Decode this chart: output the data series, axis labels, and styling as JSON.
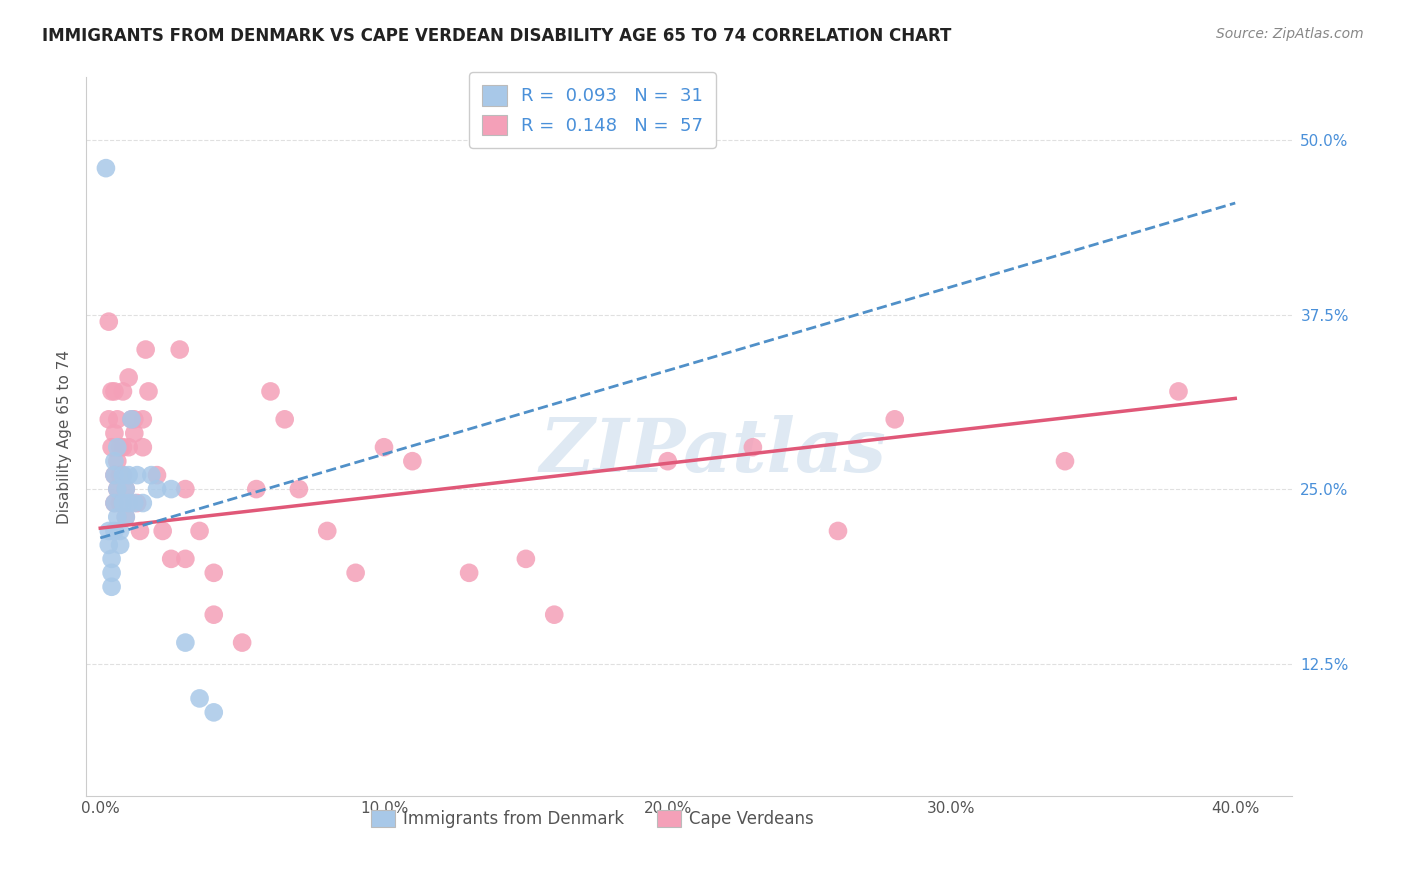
{
  "title": "IMMIGRANTS FROM DENMARK VS CAPE VERDEAN DISABILITY AGE 65 TO 74 CORRELATION CHART",
  "source": "Source: ZipAtlas.com",
  "xlabel_ticks": [
    "0.0%",
    "10.0%",
    "20.0%",
    "30.0%",
    "40.0%"
  ],
  "xlabel_tick_vals": [
    0.0,
    0.1,
    0.2,
    0.3,
    0.4
  ],
  "ylabel": "Disability Age 65 to 74",
  "ylabel_ticks": [
    "12.5%",
    "25.0%",
    "37.5%",
    "50.0%"
  ],
  "ylabel_tick_vals": [
    0.125,
    0.25,
    0.375,
    0.5
  ],
  "xlim": [
    -0.005,
    0.42
  ],
  "ylim": [
    0.03,
    0.545
  ],
  "denmark_R": 0.093,
  "denmark_N": 31,
  "capeverde_R": 0.148,
  "capeverde_N": 57,
  "denmark_color": "#a8c8e8",
  "capeverde_color": "#f4a0b8",
  "denmark_line_color": "#5090c8",
  "capeverde_line_color": "#e05878",
  "denmark_x": [
    0.002,
    0.003,
    0.003,
    0.004,
    0.004,
    0.004,
    0.005,
    0.005,
    0.005,
    0.005,
    0.006,
    0.006,
    0.006,
    0.007,
    0.007,
    0.008,
    0.008,
    0.009,
    0.009,
    0.01,
    0.01,
    0.011,
    0.012,
    0.013,
    0.015,
    0.018,
    0.02,
    0.025,
    0.03,
    0.035,
    0.04
  ],
  "denmark_y": [
    0.48,
    0.22,
    0.21,
    0.2,
    0.19,
    0.18,
    0.27,
    0.26,
    0.24,
    0.22,
    0.28,
    0.25,
    0.23,
    0.22,
    0.21,
    0.26,
    0.24,
    0.25,
    0.23,
    0.26,
    0.24,
    0.3,
    0.24,
    0.26,
    0.24,
    0.26,
    0.25,
    0.25,
    0.14,
    0.1,
    0.09
  ],
  "capeverde_x": [
    0.003,
    0.003,
    0.004,
    0.004,
    0.005,
    0.005,
    0.005,
    0.005,
    0.006,
    0.006,
    0.006,
    0.007,
    0.007,
    0.007,
    0.008,
    0.008,
    0.008,
    0.009,
    0.009,
    0.01,
    0.01,
    0.011,
    0.012,
    0.012,
    0.013,
    0.014,
    0.015,
    0.015,
    0.016,
    0.017,
    0.02,
    0.022,
    0.025,
    0.028,
    0.03,
    0.03,
    0.035,
    0.04,
    0.04,
    0.05,
    0.055,
    0.06,
    0.065,
    0.07,
    0.08,
    0.09,
    0.1,
    0.11,
    0.13,
    0.15,
    0.16,
    0.2,
    0.23,
    0.26,
    0.28,
    0.34,
    0.38
  ],
  "capeverde_y": [
    0.37,
    0.3,
    0.32,
    0.28,
    0.32,
    0.29,
    0.26,
    0.24,
    0.3,
    0.27,
    0.25,
    0.28,
    0.26,
    0.24,
    0.32,
    0.28,
    0.26,
    0.25,
    0.23,
    0.33,
    0.28,
    0.3,
    0.3,
    0.29,
    0.24,
    0.22,
    0.3,
    0.28,
    0.35,
    0.32,
    0.26,
    0.22,
    0.2,
    0.35,
    0.25,
    0.2,
    0.22,
    0.19,
    0.16,
    0.14,
    0.25,
    0.32,
    0.3,
    0.25,
    0.22,
    0.19,
    0.28,
    0.27,
    0.19,
    0.2,
    0.16,
    0.27,
    0.28,
    0.22,
    0.3,
    0.27,
    0.32
  ],
  "watermark": "ZIPatlas",
  "grid_color": "#e0e0e0",
  "background_color": "#ffffff",
  "dk_line_x0": 0.0,
  "dk_line_x1": 0.4,
  "dk_line_y0": 0.215,
  "dk_line_y1": 0.455,
  "cv_line_x0": 0.0,
  "cv_line_x1": 0.4,
  "cv_line_y0": 0.222,
  "cv_line_y1": 0.315
}
